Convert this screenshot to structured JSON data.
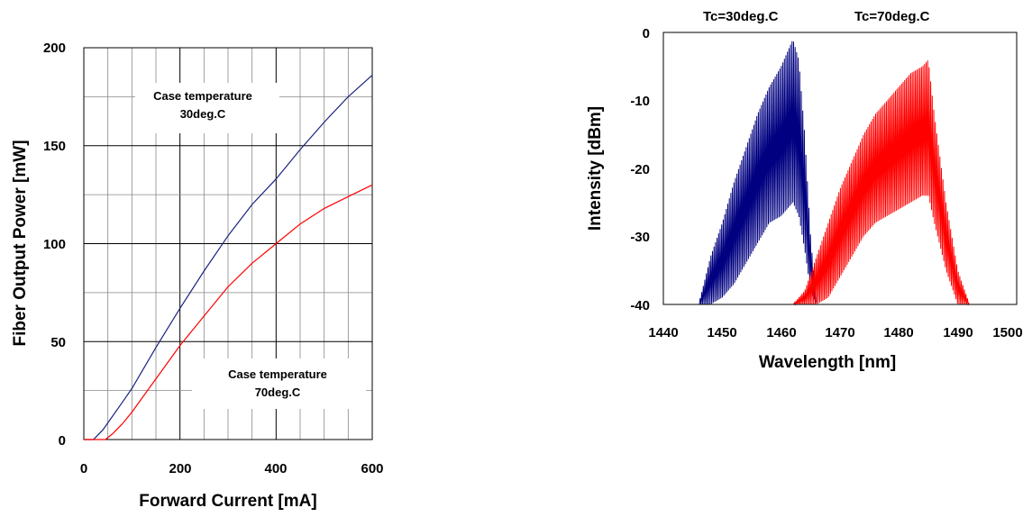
{
  "chart_data": [
    {
      "type": "line",
      "xlabel": "Forward Current [mA]",
      "ylabel": "Fiber Output Power [mW]",
      "xlim": [
        0,
        600
      ],
      "ylim": [
        0,
        200
      ],
      "x_ticks": [
        "0",
        "200",
        "400",
        "600"
      ],
      "y_ticks": [
        "0",
        "50",
        "100",
        "150",
        "200"
      ],
      "grid": true,
      "annotations": [
        {
          "line1": "Case temperature",
          "line2": "30deg.C"
        },
        {
          "line1": "Case temperature",
          "line2": "70deg.C"
        }
      ],
      "series": [
        {
          "color": "#1a237e",
          "x": [
            0,
            20,
            40,
            60,
            80,
            100,
            150,
            200,
            250,
            300,
            350,
            400,
            450,
            500,
            550,
            600
          ],
          "y": [
            0,
            0,
            5,
            12,
            19,
            26,
            47,
            67,
            86,
            104,
            120,
            133,
            148,
            162,
            175,
            186
          ]
        },
        {
          "color": "#ff0000",
          "x": [
            0,
            45,
            60,
            80,
            100,
            150,
            200,
            250,
            300,
            350,
            400,
            450,
            500,
            550,
            600
          ],
          "y": [
            0,
            0,
            3,
            8,
            14,
            31,
            48,
            63,
            78,
            90,
            100,
            110,
            118,
            124,
            130
          ]
        }
      ]
    },
    {
      "type": "line",
      "xlabel": "Wavelength [nm]",
      "ylabel": "Intensity [dBm]",
      "xlim": [
        1440,
        1500
      ],
      "ylim": [
        -40,
        0
      ],
      "x_ticks": [
        "1440",
        "1450",
        "1460",
        "1470",
        "1480",
        "1490",
        "1500"
      ],
      "y_ticks": [
        "0",
        "-10",
        "-20",
        "-30",
        "-40"
      ],
      "grid": false,
      "series": [
        {
          "name": "Tc=30deg.C",
          "color": "#000080",
          "envelope_x": [
            1446,
            1448,
            1450,
            1452,
            1454,
            1456,
            1458,
            1460,
            1461,
            1462,
            1463,
            1464,
            1465,
            1466
          ],
          "envelope_max": [
            -40,
            -33,
            -28,
            -22,
            -17,
            -12,
            -8,
            -5,
            -3,
            -1,
            -4,
            -15,
            -30,
            -40
          ],
          "envelope_min": [
            -40,
            -40,
            -39,
            -37,
            -34,
            -31,
            -28,
            -27,
            -26,
            -25,
            -27,
            -32,
            -38,
            -40
          ]
        },
        {
          "name": "Tc=70deg.C",
          "color": "#ff0000",
          "envelope_x": [
            1462,
            1464,
            1466,
            1468,
            1470,
            1472,
            1474,
            1476,
            1478,
            1480,
            1482,
            1484,
            1485,
            1486,
            1488,
            1490,
            1492
          ],
          "envelope_max": [
            -40,
            -38,
            -33,
            -28,
            -23,
            -19,
            -15,
            -12,
            -10,
            -8,
            -6,
            -5,
            -4,
            -12,
            -25,
            -35,
            -40
          ],
          "envelope_min": [
            -40,
            -40,
            -40,
            -39,
            -36,
            -33,
            -30,
            -28,
            -27,
            -26,
            -25,
            -24,
            -24,
            -28,
            -35,
            -40,
            -40
          ]
        }
      ]
    }
  ]
}
